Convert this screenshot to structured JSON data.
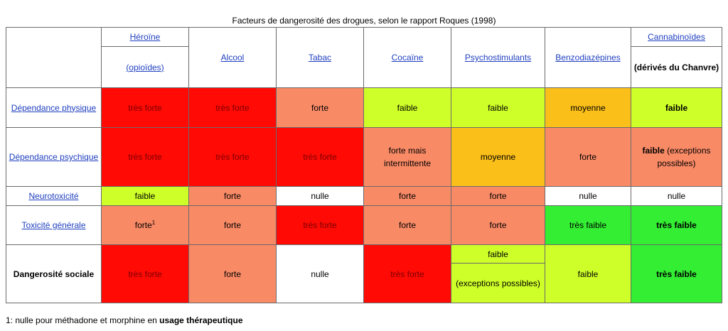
{
  "title": "Facteurs de dangerosité des drogues, selon le rapport Roques (1998)",
  "headers": {
    "heroine": "Héroïne",
    "heroine_sub": "(opioïdes)",
    "alcool": "Alcool",
    "tabac": "Tabac",
    "cocaine": "Cocaïne",
    "psychostimulants": "Psychostimulants",
    "benzodiazepines": "Benzodiazépines",
    "cannabinoides": "Cannabinoïdes",
    "cannabinoides_sub": "(dérivés du Chanvre)"
  },
  "rows": {
    "dep_physique": {
      "label": "Dépendance physique",
      "cells": [
        "très forte",
        "très forte",
        "forte",
        "faible",
        "faible",
        "moyenne",
        "faible"
      ]
    },
    "dep_psychique": {
      "label": "Dépendance psychique",
      "cells": [
        "très forte",
        "très forte",
        "très forte",
        "forte mais intermittente",
        "moyenne",
        "forte"
      ],
      "cannabis_bold": "faible",
      "cannabis_rest": " (exceptions possibles)"
    },
    "neurotoxicite": {
      "label": "Neurotoxicité",
      "cells": [
        "faible",
        "forte",
        "nulle",
        "forte",
        "forte",
        "nulle",
        "nulle"
      ]
    },
    "toxicite": {
      "label": "Toxicité générale",
      "heroine": "forte",
      "heroine_sup": "1",
      "cells": [
        "forte",
        "très forte",
        "forte",
        "forte",
        "très faible",
        "très faible"
      ]
    },
    "sociale": {
      "label": "Dangerosité sociale",
      "cells": [
        "très forte",
        "forte",
        "nulle",
        "très forte"
      ],
      "psycho_top": "faible",
      "psycho_bottom": "(exceptions possibles)",
      "benzo": "faible",
      "cannabis": "très faible"
    }
  },
  "footnote": {
    "prefix": "1: nulle pour méthadone et morphine en ",
    "bold": "usage thérapeutique"
  }
}
